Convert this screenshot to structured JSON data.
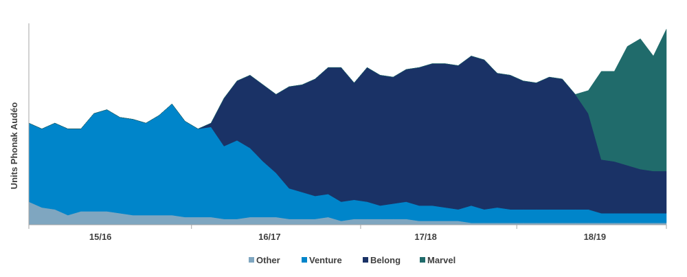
{
  "chart_data": {
    "type": "area",
    "stacked": true,
    "title": "",
    "xlabel": "",
    "ylabel": "Units Phonak Audéo",
    "x": [
      1,
      2,
      3,
      4,
      5,
      6,
      7,
      8,
      9,
      10,
      11,
      12,
      13,
      14,
      15,
      16,
      17,
      18,
      19,
      20,
      21,
      22,
      23,
      24,
      25,
      26,
      27,
      28,
      29,
      30,
      31,
      32,
      33,
      34,
      35,
      36,
      37,
      38,
      39,
      40,
      41,
      42,
      43,
      44,
      45,
      46,
      47,
      48,
      49,
      50
    ],
    "x_tick_labels": [
      {
        "label": "15/16",
        "center": 6.5
      },
      {
        "label": "16/17",
        "center": 19.5
      },
      {
        "label": "17/18",
        "center": 31.5
      },
      {
        "label": "18/19",
        "center": 44.5
      }
    ],
    "x_boundaries": [
      0.5,
      13.5,
      26.5,
      38.5,
      50.5
    ],
    "ylim": [
      0,
      105
    ],
    "grid": false,
    "legend_position": "bottom",
    "series": [
      {
        "name": "Other",
        "color": "#7FA6C0",
        "values": [
          12,
          9,
          8,
          5,
          7,
          7,
          7,
          6,
          5,
          5,
          5,
          5,
          4,
          4,
          4,
          3,
          3,
          4,
          4,
          4,
          3,
          3,
          3,
          4,
          2,
          3,
          3,
          3,
          3,
          3,
          2,
          2,
          2,
          2,
          1,
          1,
          1,
          1,
          1,
          1,
          1,
          1,
          1,
          1,
          1,
          1,
          1,
          1,
          1,
          1
        ]
      },
      {
        "name": "Venture",
        "color": "#0085CA",
        "values": [
          41,
          41,
          45,
          45,
          43,
          51,
          53,
          50,
          50,
          48,
          52,
          58,
          50,
          46,
          47,
          38,
          41,
          36,
          29,
          23,
          16,
          14,
          12,
          12,
          10,
          10,
          9,
          7,
          8,
          9,
          8,
          8,
          7,
          6,
          9,
          7,
          8,
          7,
          7,
          7,
          7,
          7,
          7,
          7,
          5,
          5,
          5,
          5,
          5,
          5
        ]
      },
      {
        "name": "Belong",
        "color": "#1A3266",
        "values": [
          0,
          0,
          0,
          0,
          0,
          0,
          0,
          0,
          0,
          0,
          0,
          0,
          0,
          0,
          2,
          25,
          31,
          38,
          40,
          41,
          53,
          56,
          61,
          66,
          70,
          61,
          70,
          68,
          66,
          69,
          72,
          74,
          75,
          75,
          78,
          78,
          70,
          70,
          67,
          66,
          69,
          68,
          60,
          50,
          28,
          27,
          25,
          23,
          22,
          22
        ]
      },
      {
        "name": "Marvel",
        "color": "#206B6B",
        "values": [
          0,
          0,
          0,
          0,
          0,
          0,
          0,
          0,
          0,
          0,
          0,
          0,
          0,
          0,
          0,
          0,
          0,
          0,
          0,
          0,
          0,
          0,
          0,
          0,
          0,
          0,
          0,
          0,
          0,
          0,
          0,
          0,
          0,
          0,
          0,
          0,
          0,
          0,
          0,
          0,
          0,
          0,
          0,
          12,
          46,
          47,
          62,
          68,
          60,
          74
        ]
      }
    ]
  }
}
